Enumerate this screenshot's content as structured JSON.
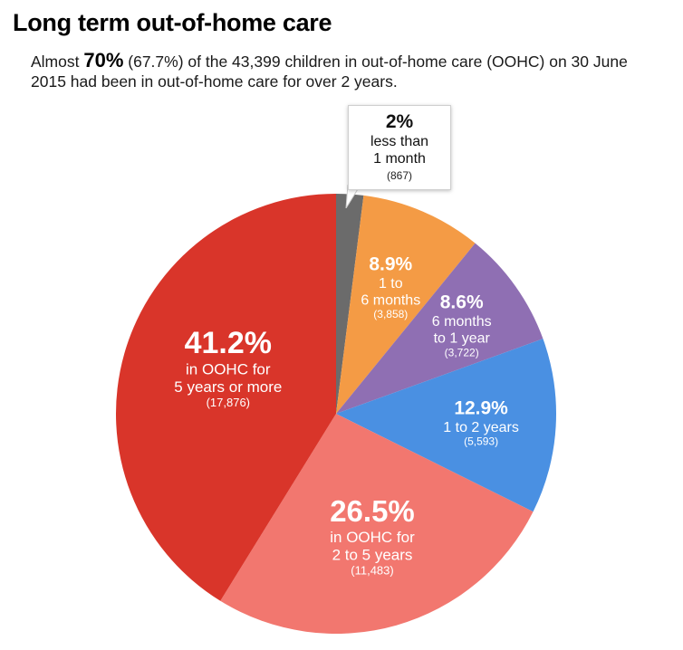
{
  "header": {
    "title": "Long term out-of-home care",
    "subtitle_pre": "Almost ",
    "subtitle_big": "70%",
    "subtitle_post": " (67.7%) of the 43,399 children in out-of-home care (OOHC) on 30 June 2015 had been in out-of-home care for over 2 years."
  },
  "chart_data": {
    "type": "pie",
    "title": "Long term out-of-home care",
    "total_children": 43399,
    "slices": [
      {
        "pct_label": "2%",
        "label_lines": [
          "less than",
          "1 month"
        ],
        "count_label": "(867)",
        "value": 867,
        "percent": 2.0,
        "color": "#6b6b6b"
      },
      {
        "pct_label": "8.9%",
        "label_lines": [
          "1 to",
          "6 months"
        ],
        "count_label": "(3,858)",
        "value": 3858,
        "percent": 8.9,
        "color": "#f49b45"
      },
      {
        "pct_label": "8.6%",
        "label_lines": [
          "6 months",
          "to 1 year"
        ],
        "count_label": "(3,722)",
        "value": 3722,
        "percent": 8.6,
        "color": "#8f6fb3"
      },
      {
        "pct_label": "12.9%",
        "label_lines": [
          "1 to 2 years"
        ],
        "count_label": "(5,593)",
        "value": 5593,
        "percent": 12.9,
        "color": "#4a90e2"
      },
      {
        "pct_label": "26.5%",
        "label_lines": [
          "in OOHC for",
          "2 to 5 years"
        ],
        "count_label": "(11,483)",
        "value": 11483,
        "percent": 26.5,
        "color": "#f2776f"
      },
      {
        "pct_label": "41.2%",
        "label_lines": [
          "in OOHC for",
          "5 years or more"
        ],
        "count_label": "(17,876)",
        "value": 17876,
        "percent": 41.2,
        "color": "#d9352a"
      }
    ]
  }
}
